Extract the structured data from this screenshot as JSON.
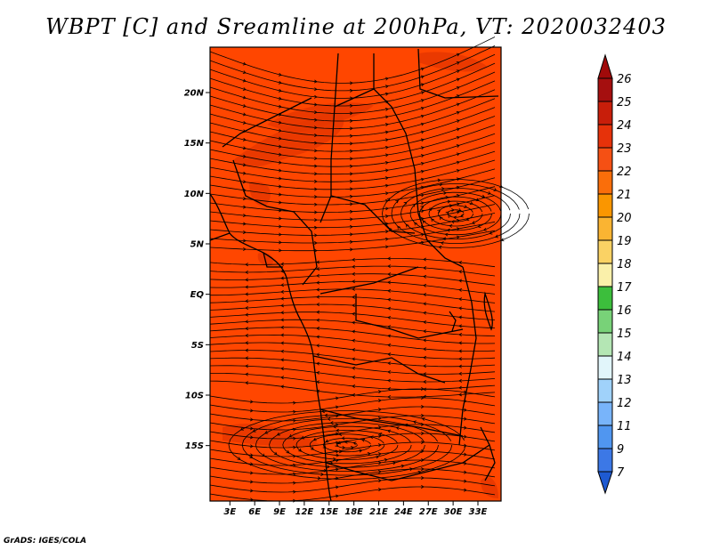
{
  "title": "WBPT [C] and Sreamline at 200hPa, VT: 2020032403",
  "credit": "GrADS: IGES/COLA",
  "lon_labels": [
    "3E",
    "6E",
    "9E",
    "12E",
    "15E",
    "18E",
    "21E",
    "24E",
    "27E",
    "30E",
    "33E"
  ],
  "lat_labels": [
    "20N",
    "15N",
    "10N",
    "5N",
    "EQ",
    "5S",
    "10S",
    "15S"
  ],
  "colorbar": {
    "labels": [
      "26",
      "25",
      "24",
      "23",
      "22",
      "21",
      "20",
      "19",
      "18",
      "17",
      "16",
      "15",
      "14",
      "13",
      "12",
      "11",
      "9",
      "7"
    ],
    "colors": [
      "#a50f0f",
      "#c81e0a",
      "#e6320a",
      "#f55014",
      "#fa6e0a",
      "#fa9600",
      "#fab432",
      "#fad264",
      "#faf0aa",
      "#3cbe3c",
      "#78d278",
      "#b4e6b4",
      "#e1f5fa",
      "#a0d2fa",
      "#78b4fa",
      "#5096f0",
      "#3c78e6",
      "#1e5ad2"
    ],
    "top_color": "#a00a0a",
    "bottom_color": "#1e5ad2"
  },
  "map": {
    "fill_color": "#ff4600",
    "dark_color": "#e63700"
  }
}
